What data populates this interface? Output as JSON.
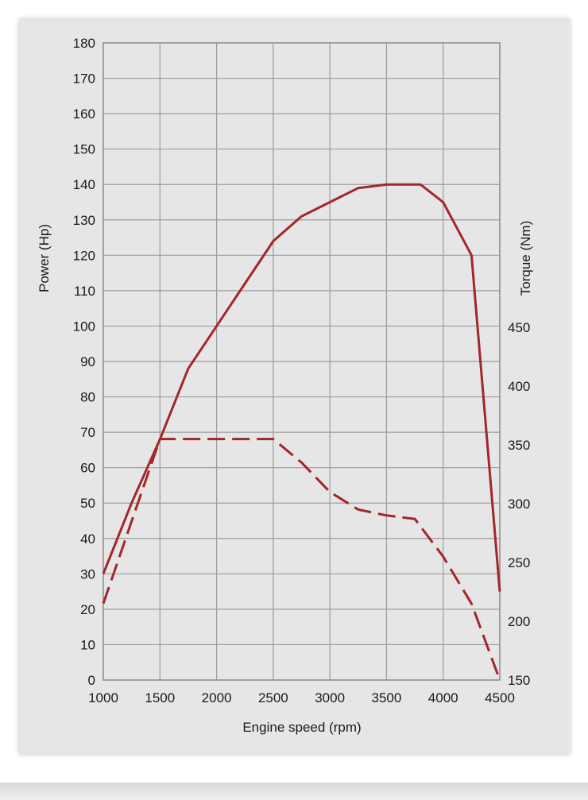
{
  "chart_data": {
    "type": "line",
    "title": "",
    "xlabel": "Engine speed (rpm)",
    "ylabel": "Power (Hp)",
    "y2label": "Torque (Nm)",
    "xlim": [
      1000,
      4500
    ],
    "ylim": [
      0,
      180
    ],
    "y2lim": [
      150,
      450
    ],
    "x_ticks": [
      1000,
      1500,
      2000,
      2500,
      3000,
      3500,
      4000,
      4500
    ],
    "y_ticks": [
      0,
      10,
      20,
      30,
      40,
      50,
      60,
      70,
      80,
      90,
      100,
      110,
      120,
      130,
      140,
      150,
      160,
      170,
      180
    ],
    "y2_ticks": [
      150,
      200,
      250,
      300,
      350,
      400,
      450
    ],
    "grid": true,
    "legend": "none",
    "series": [
      {
        "axis": "left",
        "line_style": "solid",
        "color": "#a3262b",
        "x": [
          1000,
          1250,
          1500,
          1750,
          2000,
          2250,
          2500,
          2750,
          3000,
          3250,
          3500,
          3800,
          4000,
          4250,
          4500
        ],
        "y": [
          30,
          50,
          68,
          88,
          100,
          112,
          124,
          131,
          135,
          139,
          140,
          140,
          135,
          120,
          25
        ]
      },
      {
        "axis": "right",
        "line_style": "dashed",
        "color": "#a3262b",
        "x": [
          1000,
          1500,
          2500,
          2750,
          3000,
          3250,
          3500,
          3750,
          4000,
          4250,
          4500
        ],
        "y": [
          215,
          355,
          355,
          335,
          310,
          295,
          290,
          287,
          255,
          215,
          150
        ]
      }
    ]
  }
}
